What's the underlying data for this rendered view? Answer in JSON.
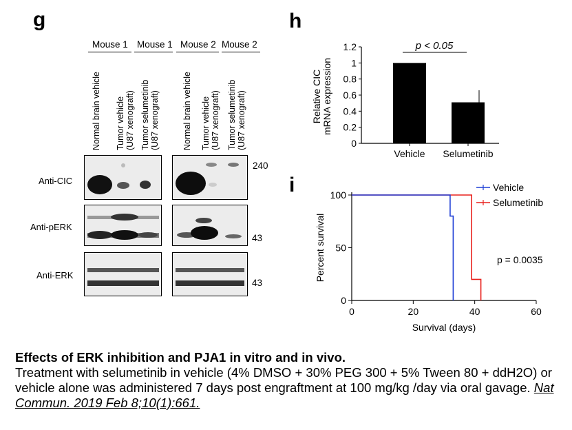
{
  "panel_g": {
    "letter": "g",
    "mouse_groups": [
      "Mouse 1",
      "Mouse 1",
      "Mouse 2",
      "Mouse 2"
    ],
    "lanes": [
      [
        "Normal brain vehicle"
      ],
      [
        "Tumor vehicle",
        "(U87 xenograft)"
      ],
      [
        "Tumor selumetinib",
        "(U87 xenograft)"
      ],
      [
        "Normal brain vehicle"
      ],
      [
        "Tumor vehicle",
        "(U87 xenograft)"
      ],
      [
        "Tumor selumetinib",
        "(U87 xenograft)"
      ]
    ],
    "blot_rows": [
      {
        "label": "Anti-CIC",
        "marker": "240"
      },
      {
        "label": "Anti-pERK",
        "marker": "43"
      },
      {
        "label": "Anti-ERK",
        "marker": "43"
      }
    ]
  },
  "chart_data": [
    {
      "panel": "h",
      "type": "bar",
      "categories": [
        "Vehicle",
        "Selumetinib"
      ],
      "values": [
        1.0,
        0.51
      ],
      "error_upper": [
        0.0,
        0.15
      ],
      "ylabel": [
        "Relative CIC",
        "mRNA expression"
      ],
      "ylim": [
        0,
        1.2
      ],
      "yticks": [
        "0",
        "0.2",
        "0.4",
        "0.6",
        "0.8",
        "1",
        "1.2"
      ],
      "annotation": "p < 0.05",
      "bar_color": "#000000"
    },
    {
      "panel": "i",
      "type": "line",
      "step": true,
      "xlabel": "Survival (days)",
      "ylabel": "Percent survival",
      "xlim": [
        0,
        60
      ],
      "ylim": [
        0,
        100
      ],
      "xticks": [
        "0",
        "20",
        "40",
        "60"
      ],
      "yticks": [
        "0",
        "50",
        "100"
      ],
      "annotation": "p = 0.0035",
      "legend_position": "top-right",
      "series": [
        {
          "name": "Vehicle",
          "color": "#1f3fd6",
          "x": [
            0,
            32,
            32,
            33,
            33
          ],
          "y": [
            100,
            100,
            80,
            80,
            0
          ]
        },
        {
          "name": "Selumetinib",
          "color": "#e8211d",
          "x": [
            0,
            39,
            39,
            42,
            42
          ],
          "y": [
            100,
            100,
            20,
            20,
            0
          ]
        }
      ]
    }
  ],
  "panel_letters": {
    "h": "h",
    "i": "i"
  },
  "caption": {
    "title": "Effects of ERK inhibition and PJA1 in vitro and in vivo.",
    "body": "Treatment with selumetinib in vehicle (4% DMSO + 30% PEG 300 + 5% Tween 80 + ddH2O) or vehicle alone was administered 7 days post engraftment at 100 mg/kg /day via oral gavage.",
    "citation": "Nat Commun. 2019 Feb 8;10(1):661."
  }
}
